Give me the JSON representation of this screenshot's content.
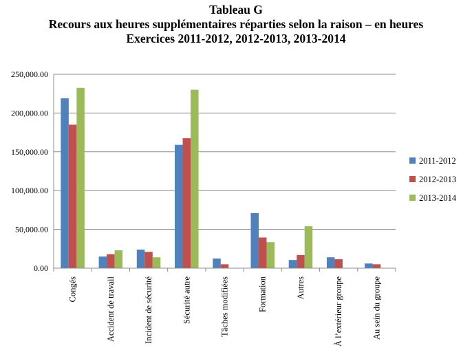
{
  "chart_data": {
    "type": "bar",
    "title": "Tableau G",
    "subtitle_lines": [
      "Recours aux heures supplémentaires réparties selon la raison – en heures",
      "Exercices 2011-2012, 2012-2013, 2013-2014"
    ],
    "xlabel": "",
    "ylabel": "",
    "ylim": [
      0,
      250000
    ],
    "yticks": [
      0,
      50000,
      100000,
      150000,
      200000,
      250000
    ],
    "ytick_labels": [
      "0.00",
      "50,000.00",
      "100,000.00",
      "150,000.00",
      "200,000.00",
      "250,000.00"
    ],
    "grid": true,
    "legend_position": "right",
    "categories": [
      "Congés",
      "Accident de travail",
      "Incident de sécurité",
      "Sécurité autre",
      "Tâches modifiées",
      "Formation",
      "Autres",
      "À l’extérieur groupe",
      "Au sein du groupe"
    ],
    "series": [
      {
        "name": "2011-2012",
        "color": "#4F81BD",
        "values": [
          219000,
          15000,
          24000,
          159000,
          12500,
          71000,
          10500,
          14000,
          6000
        ]
      },
      {
        "name": "2012-2013",
        "color": "#C0504D",
        "values": [
          185000,
          18000,
          21000,
          167500,
          5000,
          39500,
          17000,
          11500,
          5000
        ]
      },
      {
        "name": "2013-2014",
        "color": "#9BBB59",
        "values": [
          232500,
          23000,
          14000,
          230000,
          0,
          33500,
          54000,
          0,
          0
        ]
      }
    ]
  }
}
